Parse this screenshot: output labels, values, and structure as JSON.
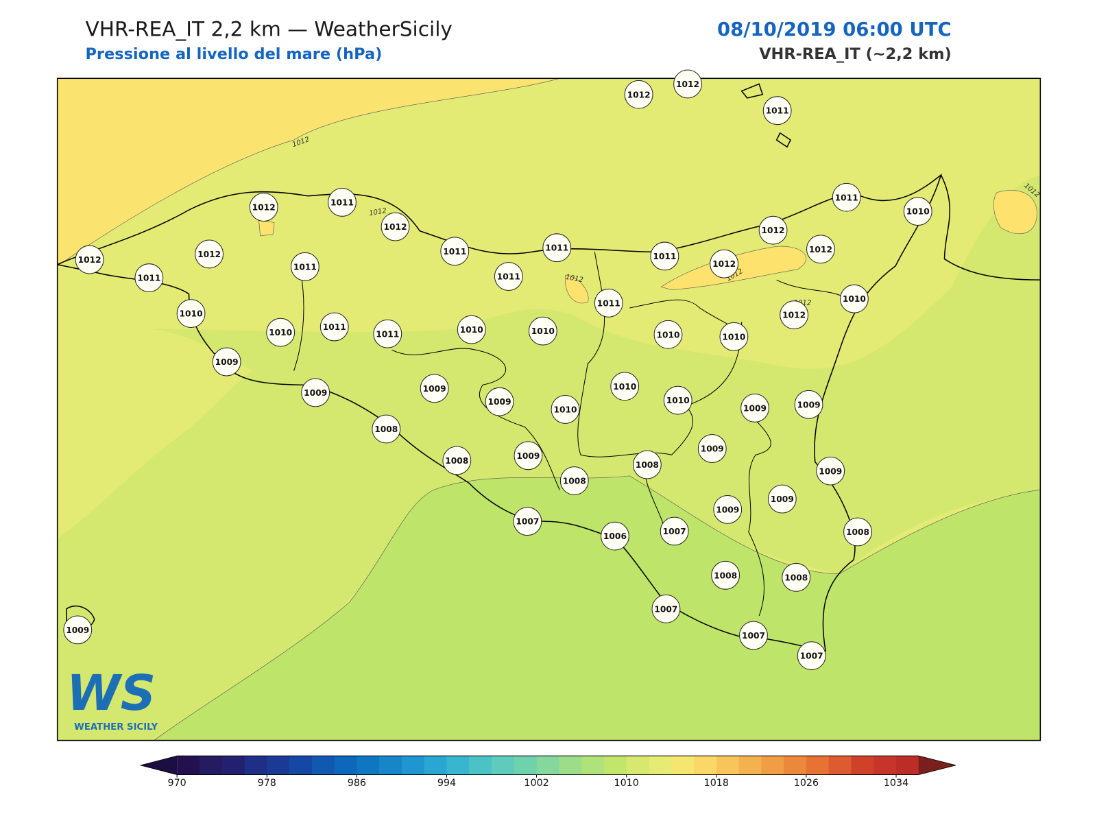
{
  "header": {
    "title": "VHR-REA_IT 2,2 km — WeatherSicily",
    "subtitle": "Pressione al livello del mare (hPa)",
    "datetime": "08/10/2019 06:00 UTC",
    "model": "VHR-REA_IT (~2,2 km)"
  },
  "map": {
    "stations": [
      1012,
      1012,
      1011,
      1012,
      1011,
      1012,
      1011,
      1010,
      1012,
      1012,
      1011,
      1011,
      1011,
      1011,
      1011,
      1011,
      1012,
      1012,
      1012,
      1011,
      1010,
      1012,
      1010,
      1010,
      1011,
      1011,
      1010,
      1010,
      1010,
      1010,
      1009,
      1009,
      1009,
      1009,
      1010,
      1010,
      1010,
      1009,
      1009,
      1008,
      1009,
      1008,
      1009,
      1008,
      1008,
      1009,
      1009,
      1009,
      1007,
      1006,
      1007,
      1008,
      1008,
      1008,
      1007,
      1007,
      1007,
      1009
    ],
    "contour_labels": [
      1012,
      1012,
      1012,
      1012,
      1012,
      1012
    ]
  },
  "colorbar": {
    "range": [
      970,
      1036
    ],
    "ticks": [
      970,
      978,
      986,
      994,
      1002,
      1010,
      1018,
      1026,
      1034
    ],
    "colors": [
      "#23104f",
      "#251b60",
      "#23206f",
      "#1f2e86",
      "#1a3a95",
      "#1548a4",
      "#1158b0",
      "#0d68bb",
      "#0f77c2",
      "#1786c9",
      "#1f96cf",
      "#2aa6d2",
      "#38b6cf",
      "#4bc2c6",
      "#5ecbbd",
      "#70d1ad",
      "#84d89c",
      "#9cdd8a",
      "#b0e27a",
      "#c2e56b",
      "#d6e86f",
      "#e6eb74",
      "#f5e66f",
      "#fbd765",
      "#f8c55a",
      "#f4b14f",
      "#f09d45",
      "#ec883c",
      "#e67234",
      "#dd5b2e",
      "#cf4229",
      "#c5352a",
      "#bd2d27"
    ],
    "under_color": "#1b0e40",
    "over_color": "#7a1f1c"
  },
  "logo": {
    "mark": "WS",
    "text": "WEATHER SICILY"
  }
}
